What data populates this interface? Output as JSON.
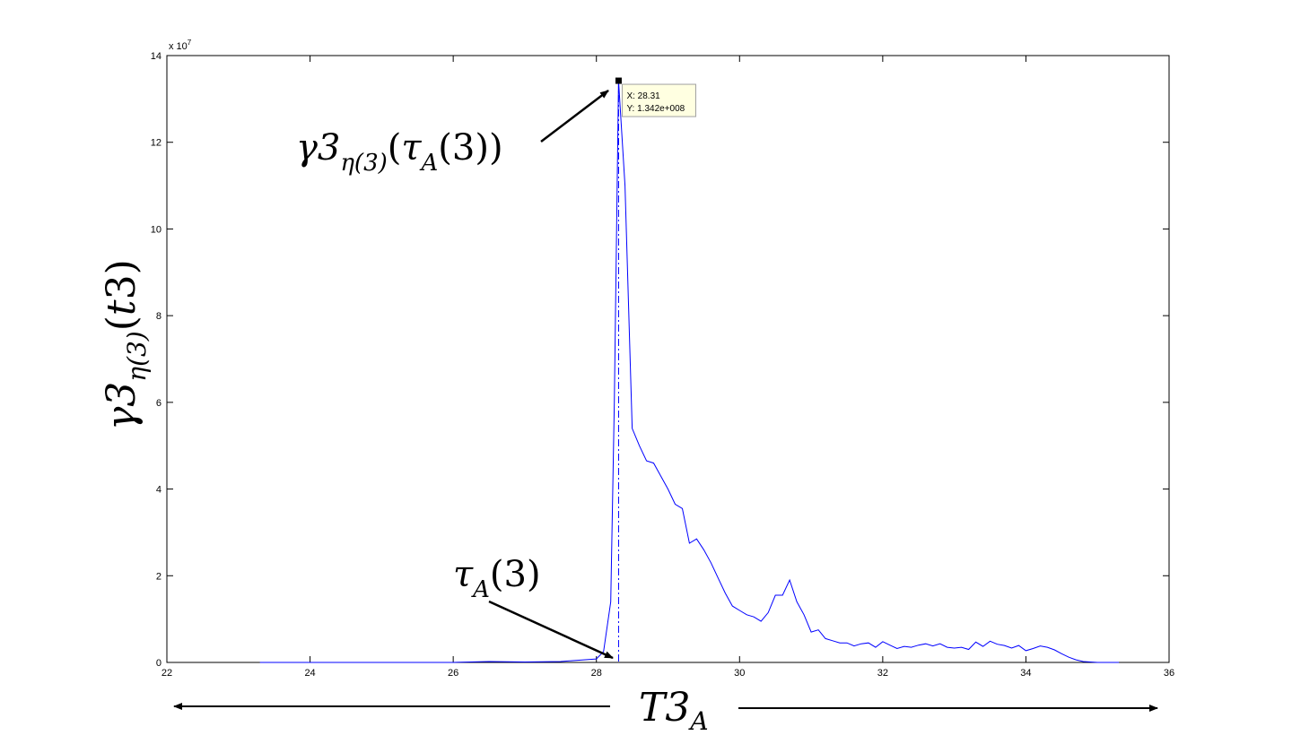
{
  "chart_data": {
    "type": "line",
    "xlabel": "T3_A",
    "ylabel": "γ3_{η(3)}(t3)",
    "xlim": [
      22,
      36
    ],
    "ylim": [
      0,
      140000000
    ],
    "xticks": [
      22,
      24,
      26,
      28,
      30,
      32,
      34,
      36
    ],
    "xtick_labels": [
      "22",
      "24",
      "26",
      "28",
      "30",
      "32",
      "34",
      "36"
    ],
    "yticks": [
      0,
      20000000,
      40000000,
      60000000,
      80000000,
      100000000,
      120000000,
      140000000
    ],
    "ytick_labels": [
      "0",
      "2",
      "4",
      "6",
      "8",
      "10",
      "12",
      "14"
    ],
    "y_exponent_label": "x 10",
    "y_exponent_power": "7",
    "grid": false,
    "series_color": "#0000ff",
    "series": [
      {
        "x": [
          23.3,
          24.0,
          25.0,
          26.0,
          26.5,
          27.0,
          27.5,
          28.0,
          28.1,
          28.2,
          28.25,
          28.31,
          28.4,
          28.5,
          28.6,
          28.7,
          28.8,
          28.9,
          29.0,
          29.1,
          29.2,
          29.3,
          29.4,
          29.5,
          29.6,
          29.7,
          29.8,
          29.9,
          30.0,
          30.1,
          30.2,
          30.3,
          30.4,
          30.5,
          30.6,
          30.7,
          30.8,
          30.9,
          31.0,
          31.1,
          31.2,
          31.3,
          31.4,
          31.5,
          31.6,
          31.7,
          31.8,
          31.9,
          32.0,
          32.1,
          32.2,
          32.3,
          32.4,
          32.5,
          32.6,
          32.7,
          32.8,
          32.9,
          33.0,
          33.1,
          33.2,
          33.3,
          33.4,
          33.5,
          33.6,
          33.7,
          33.8,
          33.9,
          34.0,
          34.1,
          34.2,
          34.3,
          34.4,
          34.5,
          34.6,
          34.7,
          34.8,
          34.9,
          35.0,
          35.1,
          35.3
        ],
        "y": [
          0,
          0,
          0,
          0,
          200000,
          100000,
          200000,
          800000,
          2500000,
          14000000,
          60000000,
          134200000,
          110000000,
          54000000,
          50000000,
          46500000,
          46000000,
          43000000,
          40000000,
          36500000,
          35500000,
          27500000,
          28500000,
          26000000,
          23000000,
          19500000,
          16000000,
          13000000,
          12000000,
          11000000,
          10500000,
          9500000,
          11500000,
          15500000,
          15500000,
          19000000,
          14000000,
          11000000,
          7000000,
          7500000,
          5500000,
          5000000,
          4500000,
          4500000,
          3800000,
          4300000,
          4500000,
          3500000,
          4800000,
          4000000,
          3200000,
          3700000,
          3500000,
          4000000,
          4300000,
          3800000,
          4300000,
          3500000,
          3300000,
          3500000,
          3000000,
          4700000,
          3700000,
          4900000,
          4200000,
          3900000,
          3300000,
          3900000,
          2700000,
          3200000,
          3800000,
          3500000,
          2900000,
          2000000,
          1200000,
          600000,
          200000,
          100000,
          0,
          0,
          0
        ]
      }
    ],
    "marker_line_x": 28.31,
    "datatip": {
      "x_text": "X: 28.31",
      "y_text": "Y: 1.342e+008",
      "x": 28.31,
      "y": 134200000
    },
    "annotations": [
      {
        "text": "γ3_{η(3)}(τ_A(3))",
        "points_to": {
          "x": 28.31,
          "y": 134000000
        }
      },
      {
        "text": "τ_A(3)",
        "points_to": {
          "x": 28.31,
          "y": 1000000
        }
      }
    ]
  }
}
